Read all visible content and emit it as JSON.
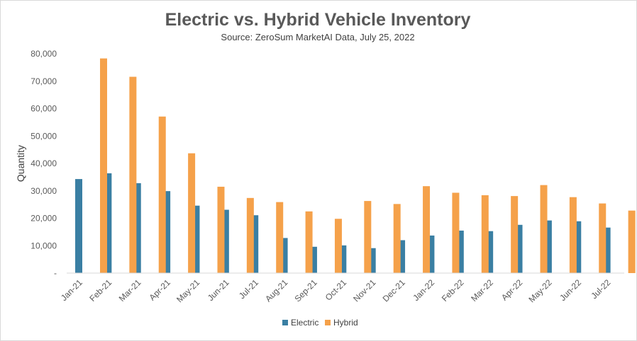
{
  "chart_data": {
    "type": "bar",
    "title": "Electric vs. Hybrid Vehicle Inventory",
    "subtitle": "Source: ZeroSum MarketAI Data, July 25, 2022",
    "xlabel": "",
    "ylabel": "Quantity",
    "ylim": [
      0,
      80000
    ],
    "yticks": [
      0,
      10000,
      20000,
      30000,
      40000,
      50000,
      60000,
      70000,
      80000
    ],
    "ytick_labels": [
      "-",
      "10,000",
      "20,000",
      "30,000",
      "40,000",
      "50,000",
      "60,000",
      "70,000",
      "80,000"
    ],
    "grid": false,
    "legend_position": "bottom",
    "categories": [
      "Jan-21",
      "Feb-21",
      "Mar-21",
      "Apr-21",
      "May-21",
      "Jun-21",
      "Jul-21",
      "Aug-21",
      "Sep-21",
      "Oct-21",
      "Nov-21",
      "Dec-21",
      "Jan-22",
      "Feb-22",
      "Mar-22",
      "Apr-22",
      "May-22",
      "Jun-22",
      "Jul-22"
    ],
    "series": [
      {
        "name": "Electric",
        "color": "#3a7fa3",
        "values": [
          34300,
          36400,
          32800,
          29900,
          24600,
          23100,
          21100,
          12800,
          9600,
          10100,
          9100,
          12000,
          13700,
          15500,
          15300,
          17600,
          19200,
          18900,
          16600
        ]
      },
      {
        "name": "Hybrid",
        "color": "#f5a14a",
        "values": [
          78300,
          71600,
          57100,
          43700,
          31500,
          27400,
          25900,
          22500,
          19800,
          26300,
          25200,
          31700,
          29300,
          28400,
          28100,
          32100,
          27700,
          25400,
          22800
        ]
      }
    ]
  }
}
